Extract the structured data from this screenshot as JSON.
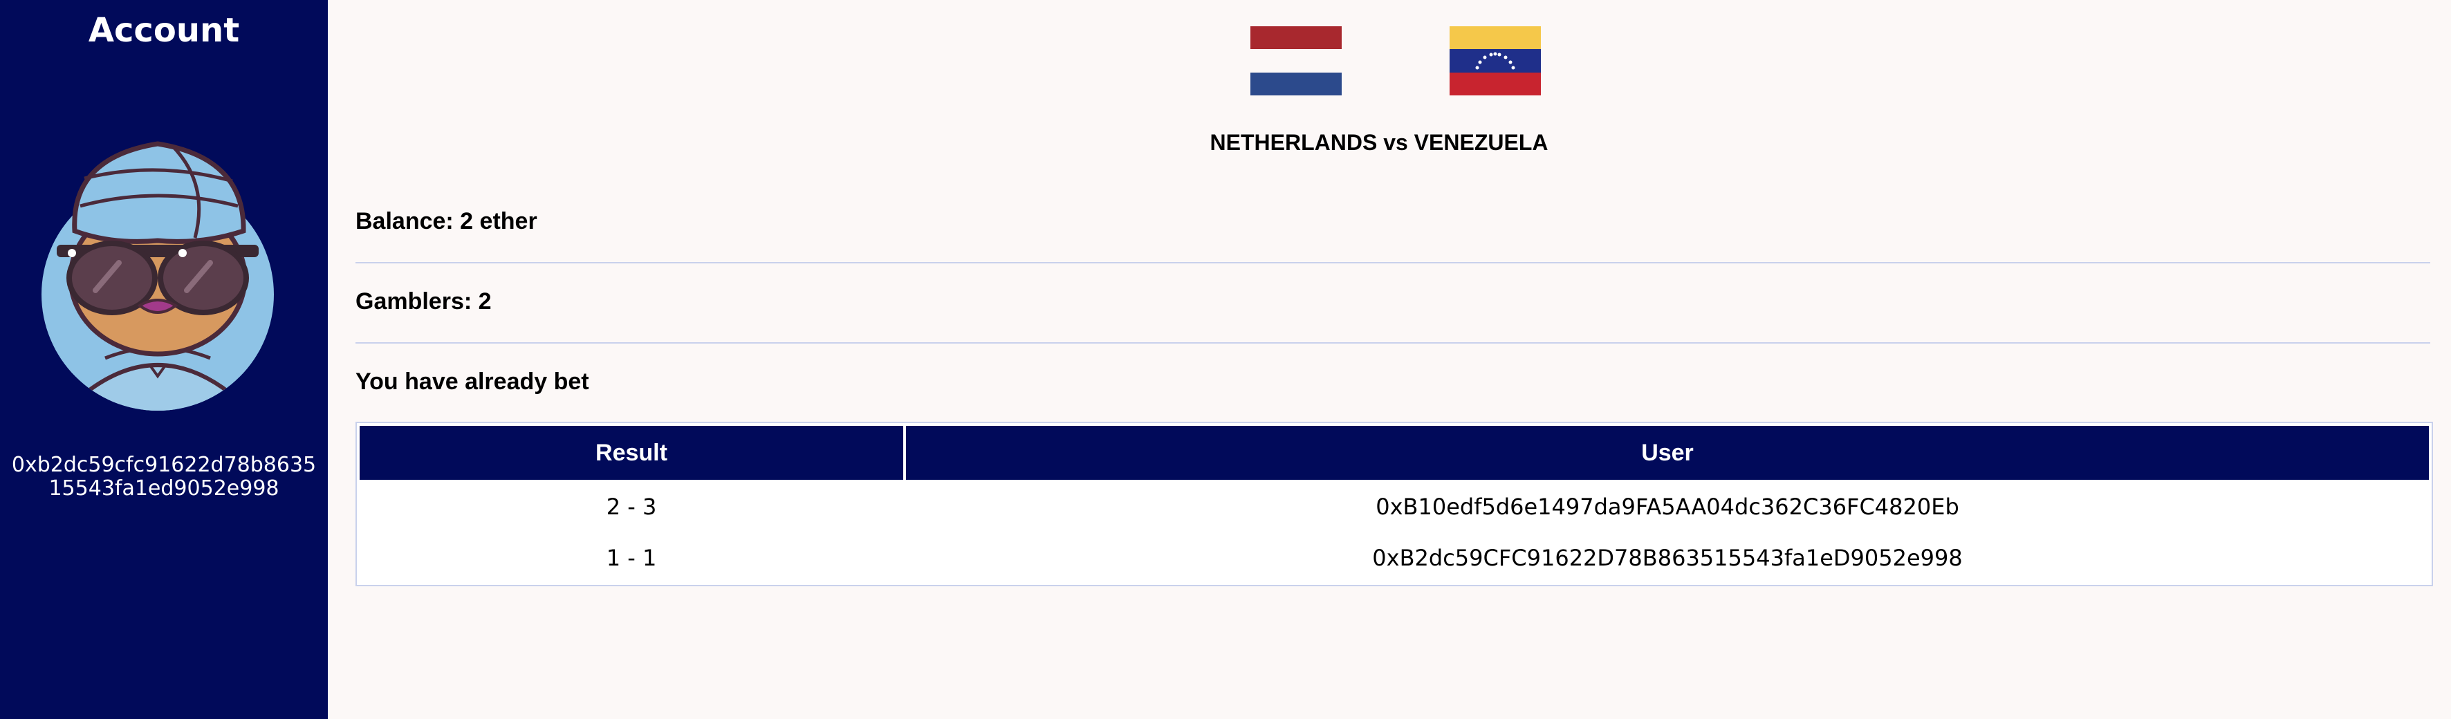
{
  "sidebar": {
    "title": "Account",
    "avatar_icon": "avatar-woman-turban-sunglasses",
    "wallet_address": "0xb2dc59cfc91622d78b863515543fa1ed9052e998",
    "background_color": "#010a5a"
  },
  "match": {
    "home_flag": "netherlands-flag",
    "away_flag": "venezuela-flag",
    "title": "NETHERLANDS vs VENEZUELA"
  },
  "info": {
    "balance": "Balance: 2 ether",
    "gamblers": "Gamblers: 2",
    "bet_status": "You have already bet"
  },
  "bets_table": {
    "columns": [
      "Result",
      "User"
    ],
    "rows": [
      {
        "result": "2 - 3",
        "user": "0xB10edf5d6e1497da9FA5AA04dc362C36FC4820Eb"
      },
      {
        "result": "1 - 1",
        "user": "0xB2dc59CFC91622D78B863515543fa1eD9052e998"
      }
    ]
  },
  "colors": {
    "accent": "#010a5a",
    "divider": "#c9d1ec",
    "page_background": "#fcf8f7"
  }
}
